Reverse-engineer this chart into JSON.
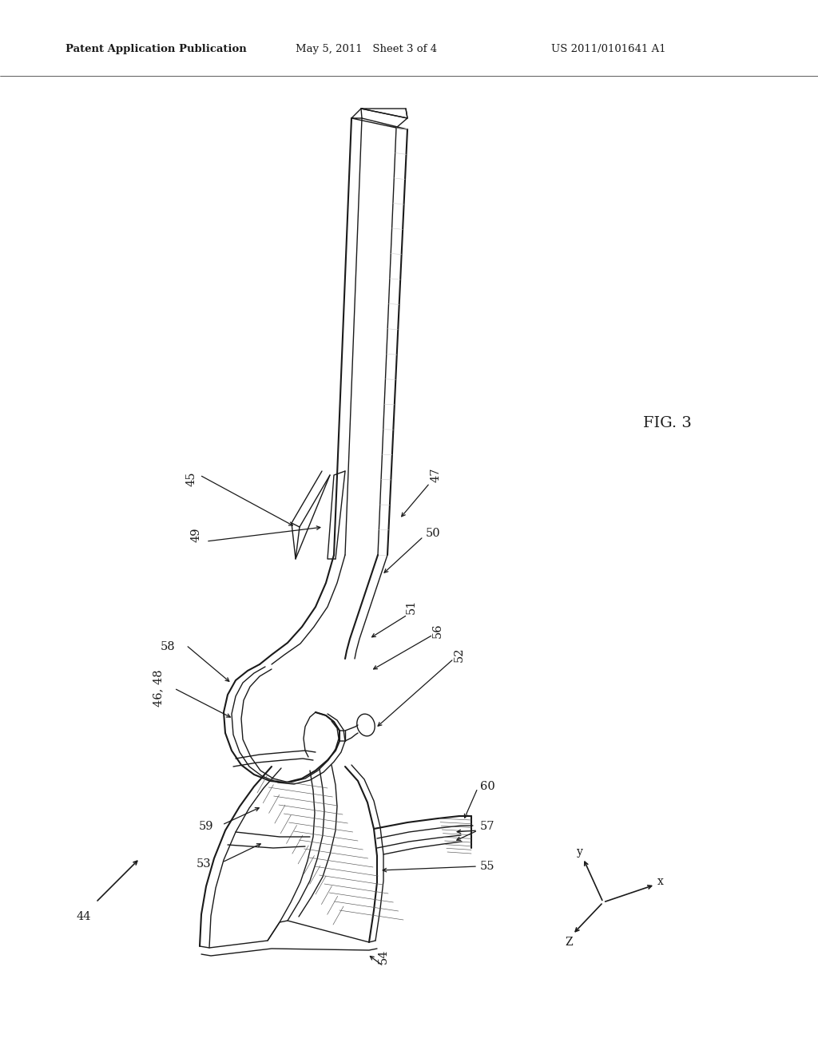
{
  "bg_color": "#ffffff",
  "header_left": "Patent Application Publication",
  "header_mid": "May 5, 2011   Sheet 3 of 4",
  "header_right": "US 2011/0101641 A1",
  "fig_label": "FIG. 3",
  "header_fontsize": 9.5,
  "label_fontsize": 10.5,
  "line_color": "#1a1a1a",
  "gray_color": "#888888"
}
